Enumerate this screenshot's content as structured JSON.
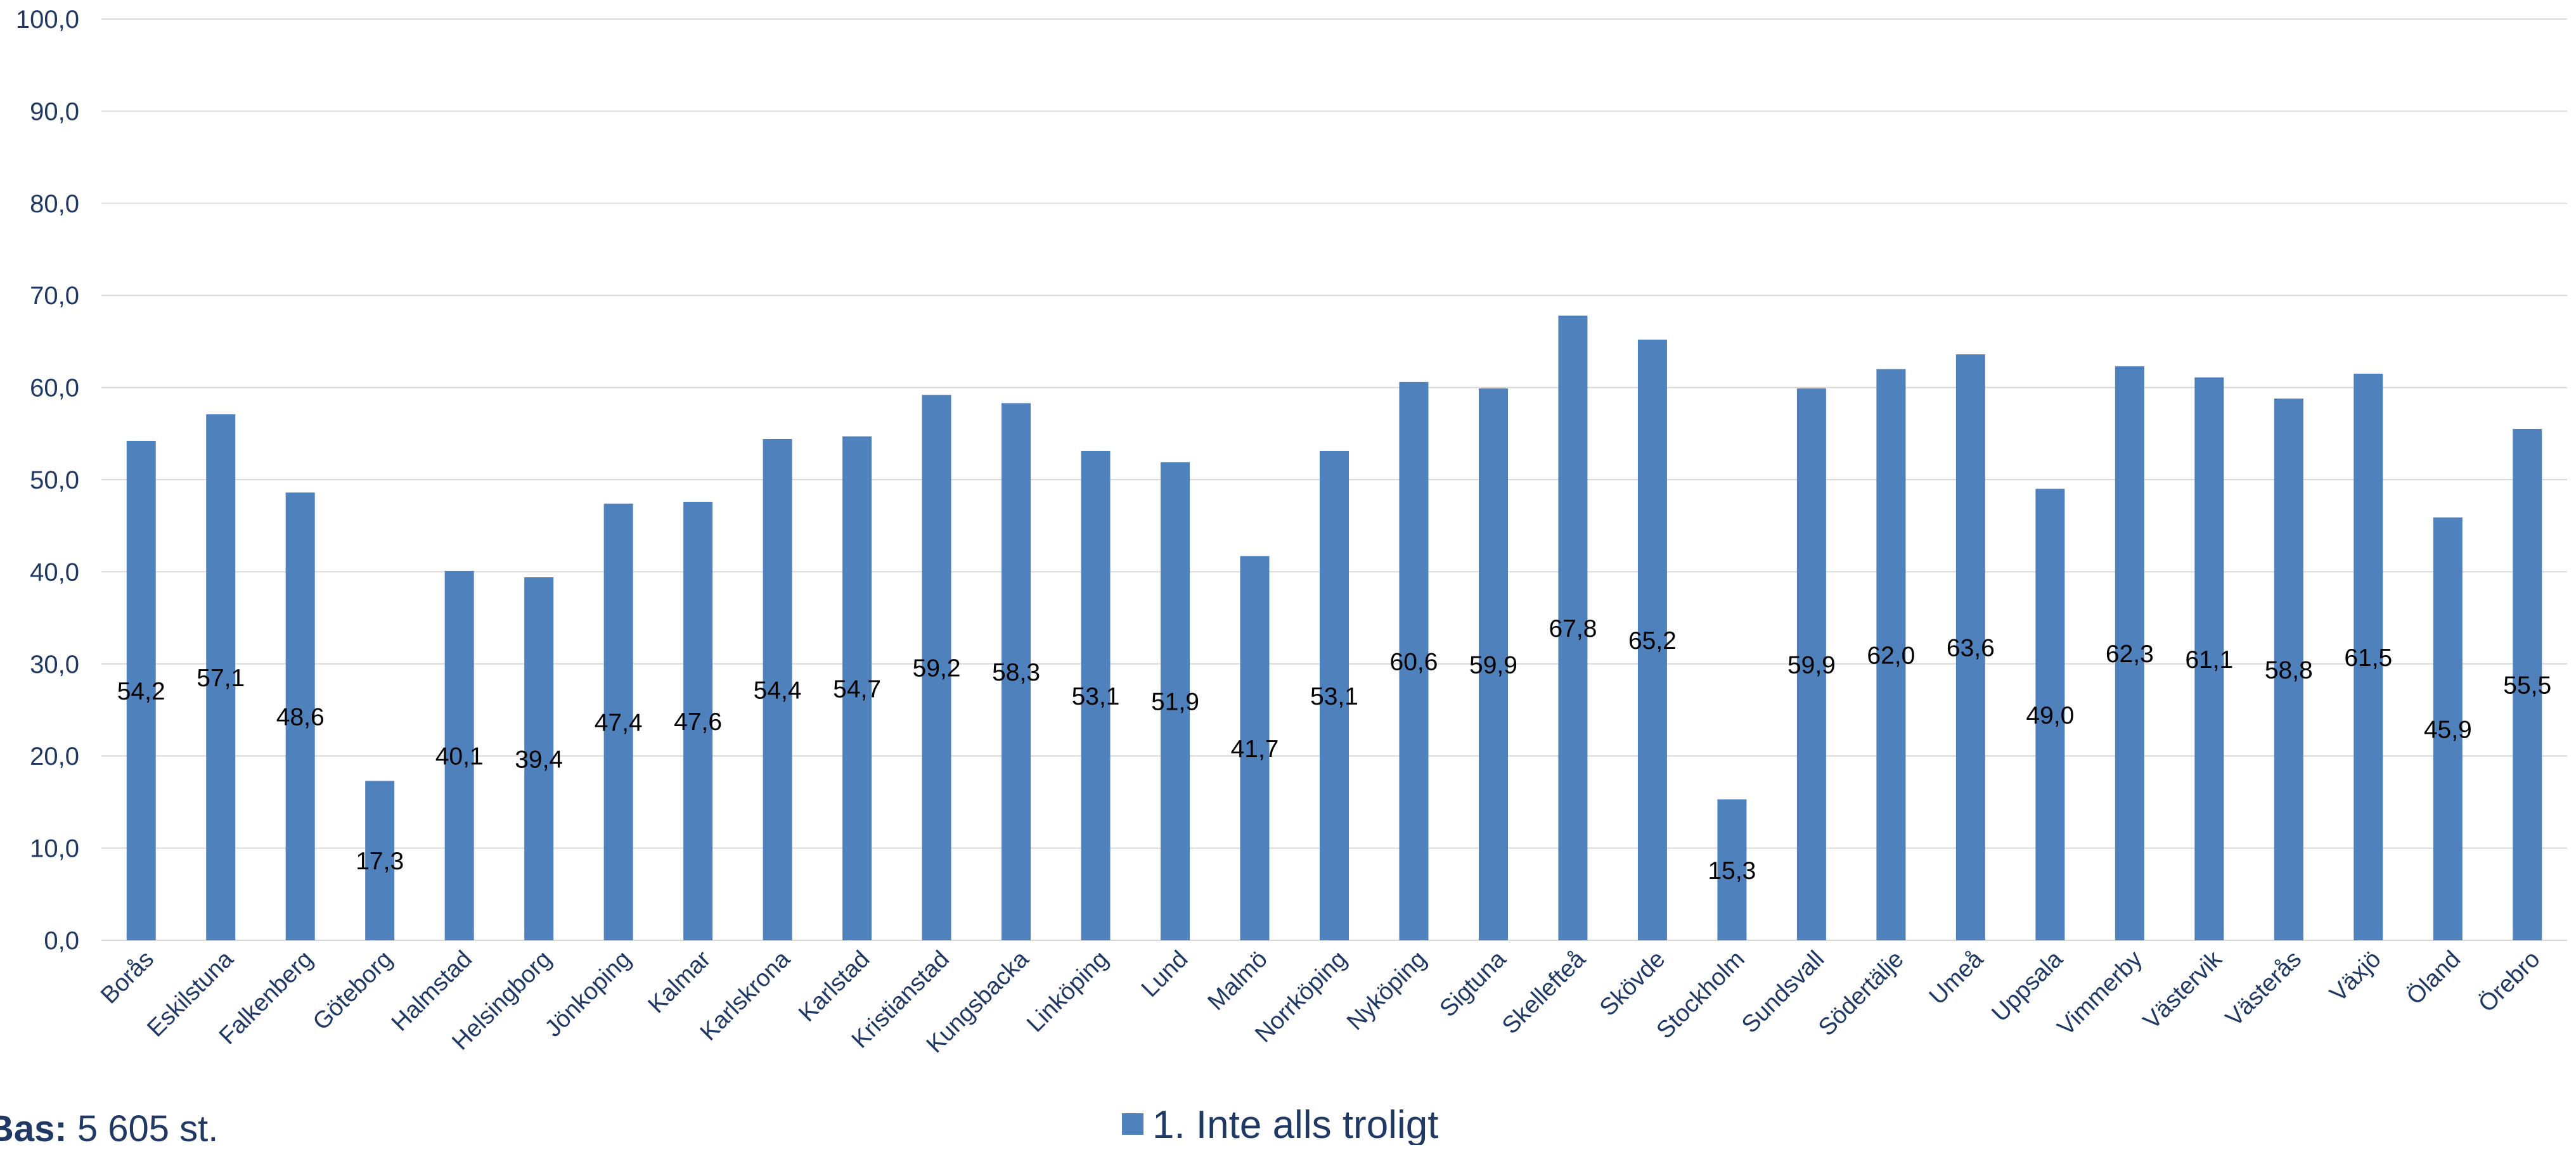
{
  "chart_data": {
    "type": "bar",
    "categories": [
      "Borås",
      "Eskilstuna",
      "Falkenberg",
      "Göteborg",
      "Halmstad",
      "Helsingborg",
      "Jönkoping",
      "Kalmar",
      "Karlskrona",
      "Karlstad",
      "Kristianstad",
      "Kungsbacka",
      "Linköping",
      "Lund",
      "Malmö",
      "Norrköping",
      "Nyköping",
      "Sigtuna",
      "Skellefteå",
      "Skövde",
      "Stockholm",
      "Sundsvall",
      "Södertälje",
      "Umeå",
      "Uppsala",
      "Vimmerby",
      "Västervik",
      "Västerås",
      "Växjö",
      "Öland",
      "Örebro"
    ],
    "series": [
      {
        "name": "1. Inte alls troligt",
        "values": [
          54.2,
          57.1,
          48.6,
          17.3,
          40.1,
          39.4,
          47.4,
          47.6,
          54.4,
          54.7,
          59.2,
          58.3,
          53.1,
          51.9,
          41.7,
          53.1,
          60.6,
          59.9,
          67.8,
          65.2,
          15.3,
          59.9,
          62.0,
          63.6,
          49.0,
          62.3,
          61.1,
          58.8,
          61.5,
          45.9,
          55.5
        ],
        "labels": [
          "54,2",
          "57,1",
          "48,6",
          "17,3",
          "40,1",
          "39,4",
          "47,4",
          "47,6",
          "54,4",
          "54,7",
          "59,2",
          "58,3",
          "53,1",
          "51,9",
          "41,7",
          "53,1",
          "60,6",
          "59,9",
          "67,8",
          "65,2",
          "15,3",
          "59,9",
          "62,0",
          "63,6",
          "49,0",
          "62,3",
          "61,1",
          "58,8",
          "61,5",
          "45,9",
          "55,5"
        ]
      }
    ],
    "ylim": [
      0,
      100
    ],
    "yticks": [
      0,
      10,
      20,
      30,
      40,
      50,
      60,
      70,
      80,
      90,
      100
    ],
    "ytick_labels": [
      "0,0",
      "10,0",
      "20,0",
      "30,0",
      "40,0",
      "50,0",
      "60,0",
      "70,0",
      "80,0",
      "90,0",
      "100,0"
    ],
    "grid": true,
    "legend_position": "bottom",
    "colors": {
      "bar": "#4f81bd",
      "grid": "#d9d9d9",
      "axis_text": "#1f3864",
      "label_text": "#000000"
    }
  },
  "footer": {
    "bas_label": "Bas:",
    "bas_value": " 5 605 st."
  }
}
